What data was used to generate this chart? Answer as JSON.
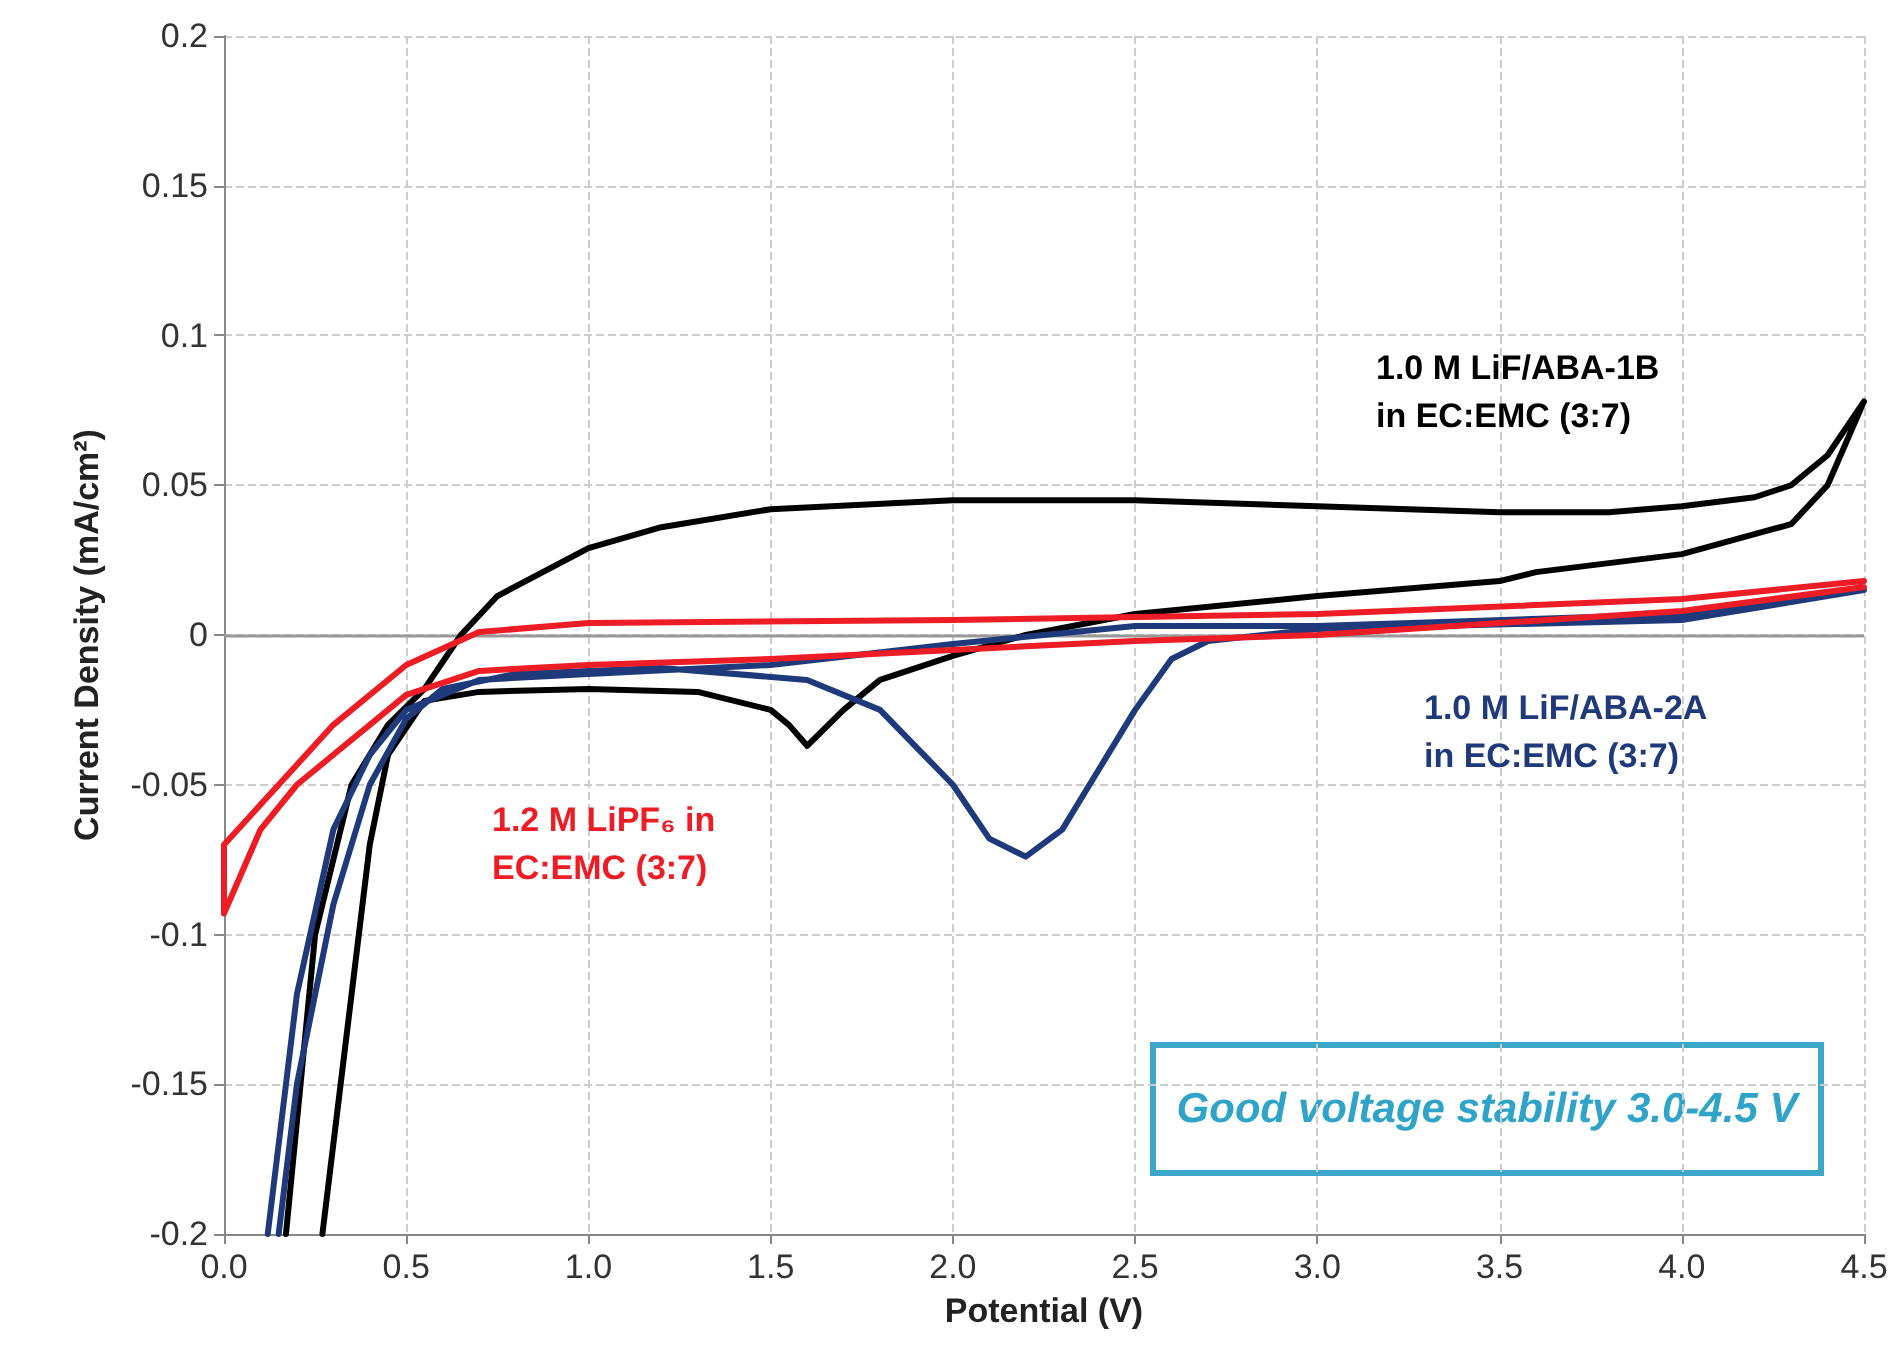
{
  "chart_data": {
    "type": "line",
    "xlabel": "Potential (V)",
    "ylabel": "Current Density (mA/cm²)",
    "xlim": [
      0,
      4.5
    ],
    "xticks": [
      {
        "value": 0,
        "label": "0.0"
      },
      0.5,
      {
        "value": 1,
        "label": "1.0"
      },
      1.5,
      {
        "value": 2,
        "label": "2.0"
      },
      2.5,
      {
        "value": 3,
        "label": "3.0"
      },
      3.5,
      {
        "value": 4,
        "label": "4.0"
      },
      4.5
    ],
    "ylim": [
      -0.2,
      0.2
    ],
    "yticks": [
      -0.2,
      -0.15,
      -0.1,
      -0.05,
      0,
      0.05,
      0.1,
      0.15,
      0.2
    ],
    "grid": true,
    "legend": false,
    "marker": "none",
    "line_style": "solid",
    "ref_lines": [
      {
        "axis": "y",
        "value": 0,
        "color": "#999999",
        "line_style": "solid"
      }
    ],
    "annotations": [
      "Good voltage stability 3.0-4.5 V"
    ],
    "series": [
      {
        "name": "1.0 M LiF/ABA-1B in EC:EMC (3:7)",
        "color": "#000000",
        "x": [
          0.17,
          0.25,
          0.35,
          0.45,
          0.55,
          0.65,
          0.75,
          1.0,
          1.2,
          1.5,
          2.0,
          2.5,
          3.0,
          3.5,
          3.8,
          4.0,
          4.2,
          4.3,
          4.4,
          4.5,
          4.4,
          4.3,
          4.0,
          3.6,
          3.5,
          3.0,
          2.5,
          2.2,
          2.0,
          1.8,
          1.7,
          1.6,
          1.55,
          1.5,
          1.3,
          1.0,
          0.7,
          0.55,
          0.45,
          0.4,
          0.35,
          0.3,
          0.27
        ],
        "values": [
          -0.2,
          -0.1,
          -0.05,
          -0.03,
          -0.018,
          0.0,
          0.013,
          0.029,
          0.036,
          0.042,
          0.045,
          0.045,
          0.043,
          0.041,
          0.041,
          0.043,
          0.046,
          0.05,
          0.06,
          0.078,
          0.05,
          0.037,
          0.027,
          0.021,
          0.018,
          0.013,
          0.007,
          0.0,
          -0.007,
          -0.015,
          -0.025,
          -0.037,
          -0.03,
          -0.025,
          -0.019,
          -0.018,
          -0.019,
          -0.022,
          -0.04,
          -0.07,
          -0.12,
          -0.17,
          -0.2
        ]
      },
      {
        "name": "1.0 M LiF/ABA-2A in EC:EMC (3:7)",
        "color": "#1f3a7a",
        "x": [
          0.12,
          0.2,
          0.3,
          0.4,
          0.5,
          0.7,
          1.0,
          1.5,
          2.0,
          2.5,
          3.0,
          4.0,
          4.5,
          4.0,
          3.0,
          2.7,
          2.6,
          2.5,
          2.4,
          2.3,
          2.2,
          2.1,
          2.0,
          1.8,
          1.6,
          1.2,
          0.8,
          0.6,
          0.5,
          0.4,
          0.3,
          0.2,
          0.15
        ],
        "values": [
          -0.2,
          -0.12,
          -0.065,
          -0.04,
          -0.025,
          -0.015,
          -0.013,
          -0.01,
          -0.003,
          0.003,
          0.003,
          0.007,
          0.015,
          0.005,
          0.002,
          -0.002,
          -0.008,
          -0.025,
          -0.045,
          -0.065,
          -0.074,
          -0.068,
          -0.05,
          -0.025,
          -0.015,
          -0.011,
          -0.013,
          -0.018,
          -0.028,
          -0.05,
          -0.09,
          -0.15,
          -0.2
        ]
      },
      {
        "name": "1.2 M LiPF₆ in EC:EMC (3:7)",
        "color": "#ee1c25",
        "x": [
          4.5,
          4.0,
          3.0,
          2.0,
          1.0,
          0.7,
          0.5,
          0.3,
          0.15,
          0,
          0,
          0.1,
          0.2,
          0.3,
          0.4,
          0.5,
          0.7,
          1.0,
          1.5,
          2.0,
          2.5,
          3.0,
          4.0,
          4.5
        ],
        "values": [
          0.018,
          0.012,
          0.007,
          0.005,
          0.004,
          0.001,
          -0.01,
          -0.03,
          -0.05,
          -0.07,
          -0.093,
          -0.065,
          -0.05,
          -0.04,
          -0.03,
          -0.02,
          -0.012,
          -0.01,
          -0.008,
          -0.005,
          -0.002,
          0.0,
          0.008,
          0.016
        ]
      }
    ]
  }
}
